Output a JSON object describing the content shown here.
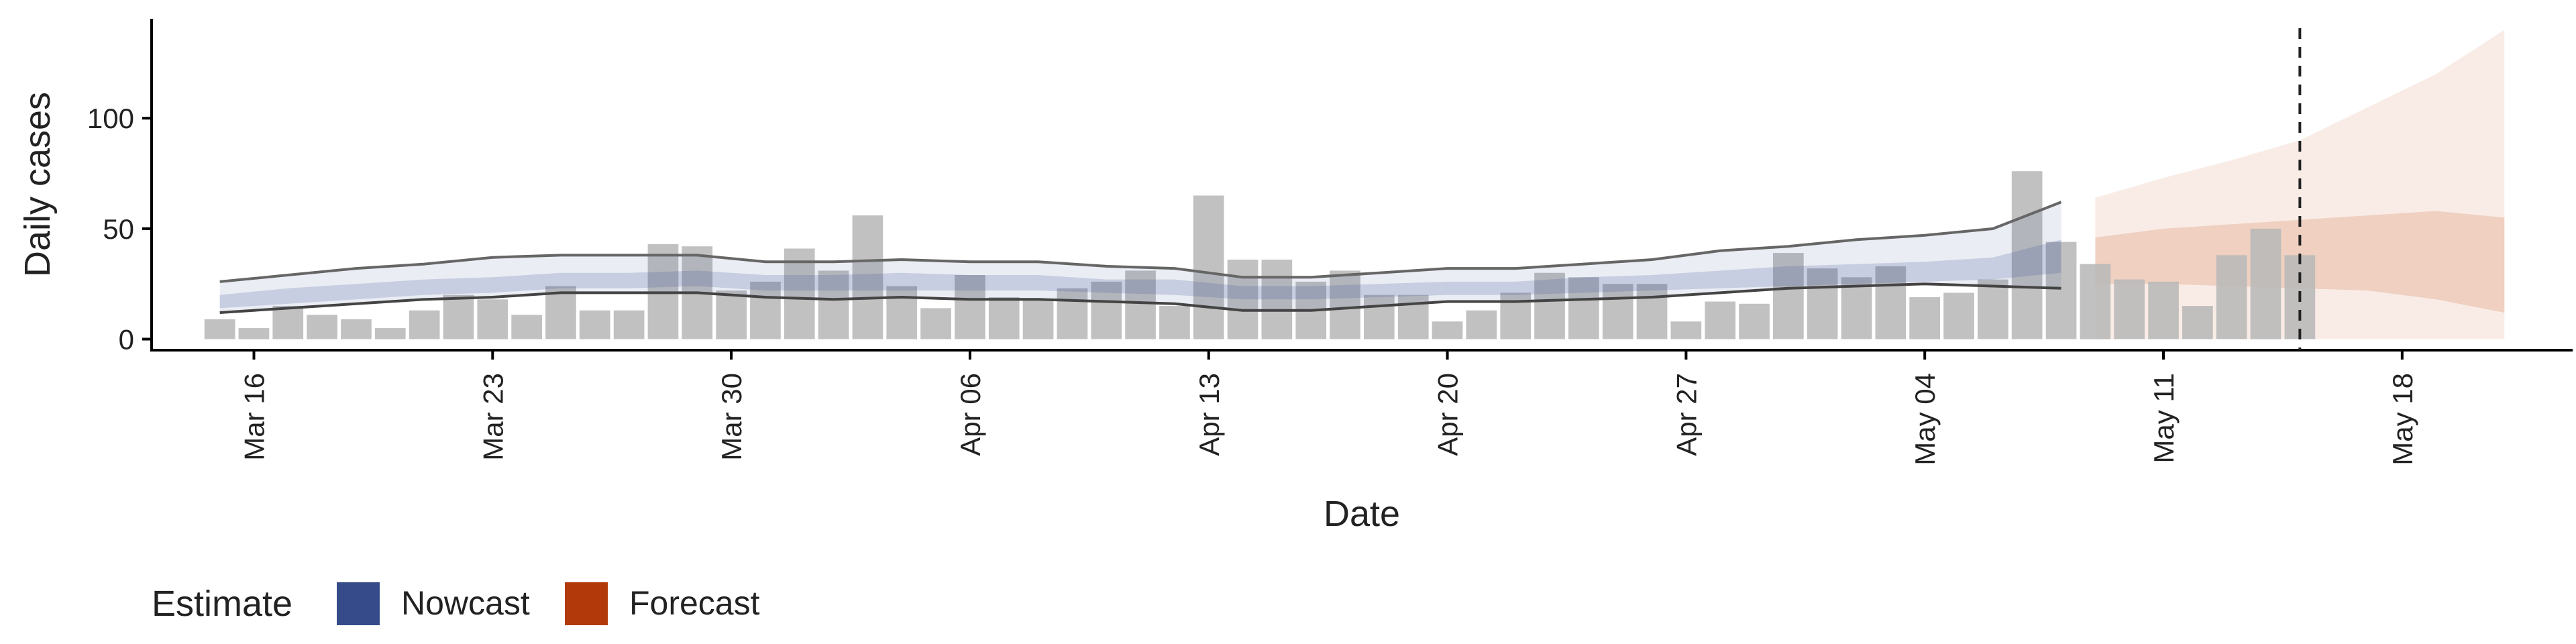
{
  "chart_data": {
    "type": "bar",
    "xlabel": "Date",
    "ylabel": "Daily cases",
    "ylim": [
      -5,
      145
    ],
    "y_ticks": [
      0,
      50,
      100
    ],
    "x_range": [
      "2020-03-13",
      "2020-05-23"
    ],
    "x_ticks": [
      {
        "date": "2020-03-16",
        "label": "Mar 16"
      },
      {
        "date": "2020-03-23",
        "label": "Mar 23"
      },
      {
        "date": "2020-03-30",
        "label": "Mar 30"
      },
      {
        "date": "2020-04-06",
        "label": "Apr 06"
      },
      {
        "date": "2020-04-13",
        "label": "Apr 13"
      },
      {
        "date": "2020-04-20",
        "label": "Apr 20"
      },
      {
        "date": "2020-04-27",
        "label": "Apr 27"
      },
      {
        "date": "2020-05-04",
        "label": "May 04"
      },
      {
        "date": "2020-05-11",
        "label": "May 11"
      },
      {
        "date": "2020-05-18",
        "label": "May 18"
      }
    ],
    "reported_cases": {
      "dates": [
        "2020-03-15",
        "2020-03-16",
        "2020-03-17",
        "2020-03-18",
        "2020-03-19",
        "2020-03-20",
        "2020-03-21",
        "2020-03-22",
        "2020-03-23",
        "2020-03-24",
        "2020-03-25",
        "2020-03-26",
        "2020-03-27",
        "2020-03-28",
        "2020-03-29",
        "2020-03-30",
        "2020-03-31",
        "2020-04-01",
        "2020-04-02",
        "2020-04-03",
        "2020-04-04",
        "2020-04-05",
        "2020-04-06",
        "2020-04-07",
        "2020-04-08",
        "2020-04-09",
        "2020-04-10",
        "2020-04-11",
        "2020-04-12",
        "2020-04-13",
        "2020-04-14",
        "2020-04-15",
        "2020-04-16",
        "2020-04-17",
        "2020-04-18",
        "2020-04-19",
        "2020-04-20",
        "2020-04-21",
        "2020-04-22",
        "2020-04-23",
        "2020-04-24",
        "2020-04-25",
        "2020-04-26",
        "2020-04-27",
        "2020-04-28",
        "2020-04-29",
        "2020-04-30",
        "2020-05-01",
        "2020-05-02",
        "2020-05-03",
        "2020-05-04",
        "2020-05-05",
        "2020-05-06",
        "2020-05-07",
        "2020-05-08",
        "2020-05-09",
        "2020-05-10",
        "2020-05-11",
        "2020-05-12",
        "2020-05-13",
        "2020-05-14",
        "2020-05-15",
        "2020-05-16"
      ],
      "values": [
        9,
        5,
        15,
        11,
        9,
        5,
        13,
        20,
        18,
        11,
        24,
        13,
        13,
        43,
        42,
        22,
        26,
        41,
        31,
        56,
        24,
        14,
        29,
        19,
        18,
        23,
        26,
        31,
        15,
        65,
        36,
        36,
        26,
        31,
        20,
        20,
        8,
        13,
        21,
        30,
        28,
        25,
        25,
        8,
        17,
        16,
        39,
        32,
        28,
        33,
        19,
        21,
        27,
        76,
        44,
        34,
        27,
        26,
        15,
        38,
        50,
        38,
        0
      ]
    },
    "nowcast": {
      "dates": [
        "2020-03-15",
        "2020-03-17",
        "2020-03-19",
        "2020-03-21",
        "2020-03-23",
        "2020-03-25",
        "2020-03-27",
        "2020-03-29",
        "2020-03-31",
        "2020-04-02",
        "2020-04-04",
        "2020-04-06",
        "2020-04-08",
        "2020-04-10",
        "2020-04-12",
        "2020-04-14",
        "2020-04-16",
        "2020-04-18",
        "2020-04-20",
        "2020-04-22",
        "2020-04-24",
        "2020-04-26",
        "2020-04-28",
        "2020-04-30",
        "2020-05-02",
        "2020-05-04",
        "2020-05-06",
        "2020-05-08"
      ],
      "outer_upper": [
        26,
        29,
        32,
        34,
        37,
        38,
        38,
        38,
        35,
        35,
        36,
        35,
        35,
        33,
        32,
        28,
        28,
        30,
        32,
        32,
        34,
        36,
        40,
        42,
        45,
        47,
        50,
        62
      ],
      "inner_upper": [
        20,
        23,
        25,
        27,
        28,
        30,
        30,
        31,
        29,
        29,
        30,
        29,
        29,
        27,
        27,
        24,
        24,
        25,
        26,
        26,
        28,
        29,
        31,
        33,
        34,
        35,
        37,
        45
      ],
      "inner_lower": [
        14,
        16,
        18,
        20,
        21,
        23,
        23,
        24,
        22,
        22,
        22,
        22,
        22,
        21,
        20,
        18,
        18,
        19,
        20,
        20,
        21,
        22,
        23,
        24,
        25,
        26,
        27,
        30
      ],
      "outer_lower": [
        12,
        14,
        16,
        18,
        19,
        21,
        21,
        21,
        19,
        18,
        19,
        18,
        18,
        17,
        16,
        13,
        13,
        15,
        17,
        17,
        18,
        19,
        21,
        23,
        24,
        25,
        24,
        23
      ],
      "line_upper": [
        26,
        29,
        32,
        34,
        37,
        38,
        38,
        38,
        35,
        35,
        36,
        35,
        35,
        33,
        32,
        28,
        28,
        30,
        32,
        32,
        34,
        36,
        40,
        42,
        45,
        47,
        50,
        62
      ],
      "line_lower": [
        12,
        14,
        16,
        18,
        19,
        21,
        21,
        21,
        19,
        18,
        19,
        18,
        18,
        17,
        16,
        13,
        13,
        15,
        17,
        17,
        18,
        19,
        21,
        23,
        24,
        25,
        24,
        23
      ]
    },
    "forecast": {
      "dates": [
        "2020-05-09",
        "2020-05-11",
        "2020-05-13",
        "2020-05-15",
        "2020-05-17",
        "2020-05-19",
        "2020-05-21"
      ],
      "outer_upper": [
        64,
        73,
        81,
        90,
        105,
        120,
        140
      ],
      "inner_upper": [
        46,
        50,
        52,
        54,
        56,
        58,
        55
      ],
      "inner_lower": [
        25,
        25,
        24,
        23,
        22,
        18,
        12
      ],
      "outer_lower": [
        0,
        0,
        0,
        0,
        0,
        0,
        0
      ]
    },
    "vline_date": "2020-05-15",
    "legend": {
      "title": "Estimate",
      "items": [
        {
          "label": "Nowcast",
          "color": "#354b8a"
        },
        {
          "label": "Forecast",
          "color": "#b23a0a"
        }
      ]
    },
    "colors": {
      "bars": "#b8b8b8",
      "nowcast_band": "#3a5394",
      "forecast_band": "#c4521c",
      "lines": "#666666",
      "axis": "#000000"
    }
  }
}
